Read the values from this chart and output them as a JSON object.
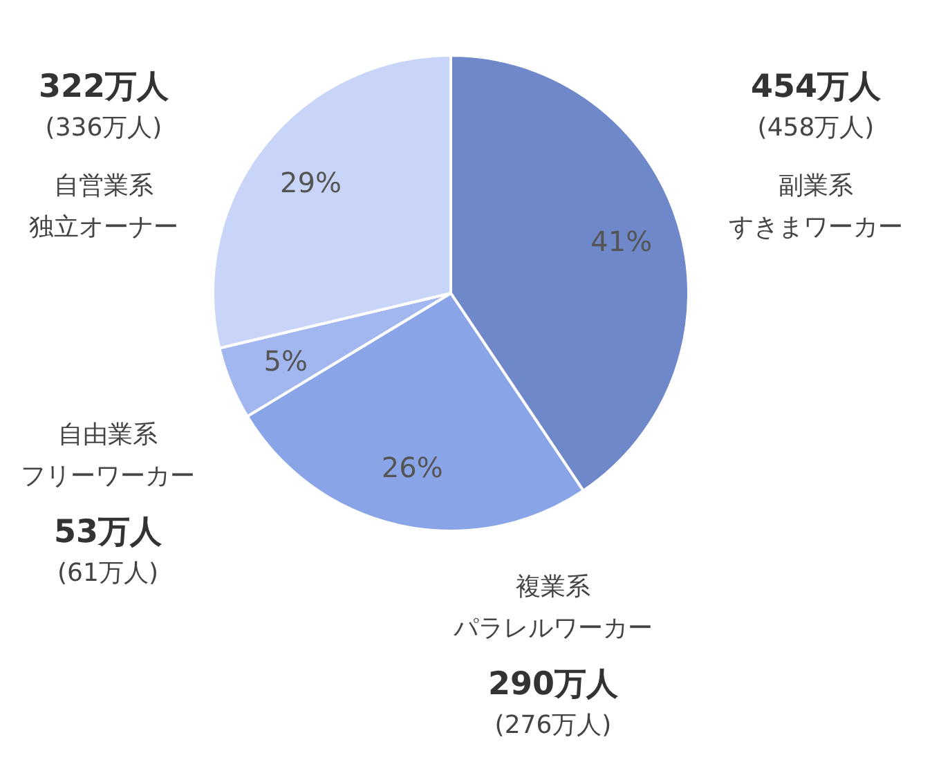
{
  "chart_data": {
    "type": "pie",
    "categories": [
      "副業系すきまワーカー",
      "複業系パラレルワーカー",
      "自由業系フリーワーカー",
      "自営業系独立オーナー"
    ],
    "values": [
      41,
      26,
      5,
      29
    ],
    "colors": [
      "#6f88c9",
      "#8aa4e8",
      "#a2b6f0",
      "#c8d4f8"
    ],
    "value_labels": [
      "41%",
      "26%",
      "5%",
      "29%"
    ],
    "annotations": [
      "454万人",
      "(458万人)",
      "290万人",
      "(276万人)",
      "53万人",
      "(61万人)",
      "322万人",
      "(336万人)"
    ]
  }
}
